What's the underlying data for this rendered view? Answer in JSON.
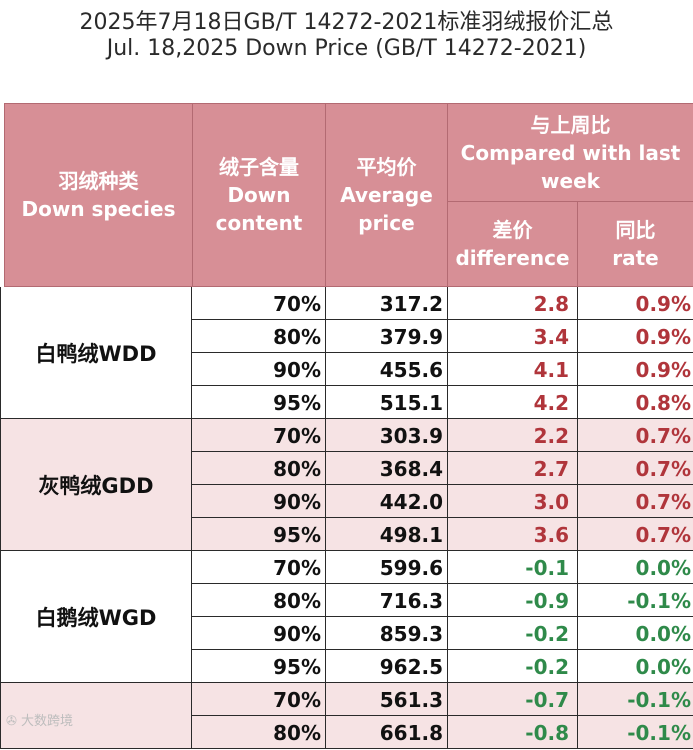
{
  "title_cn": "2025年7月18日GB/T 14272-2021标准羽绒报价汇总",
  "title_en": "Jul. 18,2025 Down Price (GB/T 14272-2021)",
  "headers": {
    "species_cn": "羽绒种类",
    "species_en": "Down species",
    "content_cn": "绒子含量",
    "content_en1": "Down",
    "content_en2": "content",
    "avg_cn": "平均价",
    "avg_en1": "Average",
    "avg_en2": "price",
    "compare_cn": "与上周比",
    "compare_en1": "Compared with last",
    "compare_en2": "week",
    "diff_cn": "差价",
    "diff_en": "difference",
    "rate_cn": "同比",
    "rate_en": "rate"
  },
  "groups": [
    {
      "name": "白鸭绒WDD",
      "rows": [
        {
          "pct": "70%",
          "avg": "317.2",
          "diff": "2.8",
          "rate": "0.9%",
          "trend": "up"
        },
        {
          "pct": "80%",
          "avg": "379.9",
          "diff": "3.4",
          "rate": "0.9%",
          "trend": "up"
        },
        {
          "pct": "90%",
          "avg": "455.6",
          "diff": "4.1",
          "rate": "0.9%",
          "trend": "up"
        },
        {
          "pct": "95%",
          "avg": "515.1",
          "diff": "4.2",
          "rate": "0.8%",
          "trend": "up"
        }
      ]
    },
    {
      "name": "灰鸭绒GDD",
      "rows": [
        {
          "pct": "70%",
          "avg": "303.9",
          "diff": "2.2",
          "rate": "0.7%",
          "trend": "up"
        },
        {
          "pct": "80%",
          "avg": "368.4",
          "diff": "2.7",
          "rate": "0.7%",
          "trend": "up"
        },
        {
          "pct": "90%",
          "avg": "442.0",
          "diff": "3.0",
          "rate": "0.7%",
          "trend": "up"
        },
        {
          "pct": "95%",
          "avg": "498.1",
          "diff": "3.6",
          "rate": "0.7%",
          "trend": "up"
        }
      ]
    },
    {
      "name": "白鹅绒WGD",
      "rows": [
        {
          "pct": "70%",
          "avg": "599.6",
          "diff": "-0.1",
          "rate": "0.0%",
          "trend": "down"
        },
        {
          "pct": "80%",
          "avg": "716.3",
          "diff": "-0.9",
          "rate": "-0.1%",
          "trend": "down"
        },
        {
          "pct": "90%",
          "avg": "859.3",
          "diff": "-0.2",
          "rate": "0.0%",
          "trend": "down"
        },
        {
          "pct": "95%",
          "avg": "962.5",
          "diff": "-0.2",
          "rate": "0.0%",
          "trend": "down"
        }
      ]
    },
    {
      "name": "",
      "rows": [
        {
          "pct": "70%",
          "avg": "561.3",
          "diff": "-0.7",
          "rate": "-0.1%",
          "trend": "down"
        },
        {
          "pct": "80%",
          "avg": "661.8",
          "diff": "-0.8",
          "rate": "-0.1%",
          "trend": "down"
        }
      ]
    }
  ],
  "watermark": "大数跨境"
}
